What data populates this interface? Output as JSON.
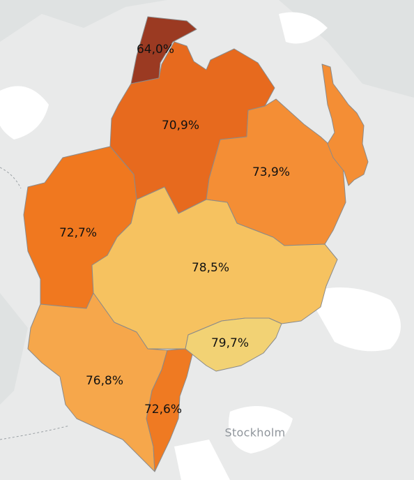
{
  "map": {
    "place_labels": [
      {
        "key": "stockholm",
        "text": "Stockholm"
      }
    ],
    "regions": [
      {
        "key": "north-tip",
        "label": "64,0%",
        "color": "#9b3a22"
      },
      {
        "key": "north",
        "label": "70,9%",
        "color": "#e76a1e"
      },
      {
        "key": "east",
        "label": "73,9%",
        "color": "#f48e35"
      },
      {
        "key": "west",
        "label": "72,7%",
        "color": "#f0781f"
      },
      {
        "key": "center",
        "label": "78,5%",
        "color": "#f6c260"
      },
      {
        "key": "southeast",
        "label": "79,7%",
        "color": "#f2d274"
      },
      {
        "key": "southwest",
        "label": "76,8%",
        "color": "#f6a74b"
      },
      {
        "key": "south",
        "label": "72,6%",
        "color": "#ef7a22"
      }
    ]
  }
}
